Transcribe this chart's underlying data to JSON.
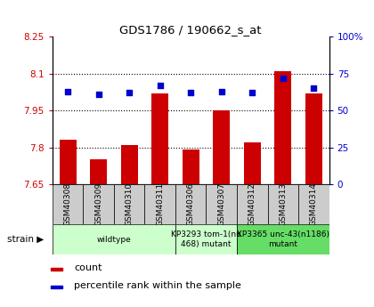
{
  "title": "GDS1786 / 190662_s_at",
  "samples": [
    "GSM40308",
    "GSM40309",
    "GSM40310",
    "GSM40311",
    "GSM40306",
    "GSM40307",
    "GSM40312",
    "GSM40313",
    "GSM40314"
  ],
  "count_values": [
    7.83,
    7.75,
    7.81,
    8.02,
    7.79,
    7.95,
    7.82,
    8.11,
    8.02
  ],
  "percentile_values": [
    63,
    61,
    62,
    67,
    62,
    63,
    62,
    72,
    65
  ],
  "ylim_left": [
    7.65,
    8.25
  ],
  "ylim_right": [
    0,
    100
  ],
  "yticks_left": [
    7.65,
    7.8,
    7.95,
    8.1,
    8.25
  ],
  "yticks_right": [
    0,
    25,
    50,
    75,
    100
  ],
  "ytick_labels_left": [
    "7.65",
    "7.8",
    "7.95",
    "8.1",
    "8.25"
  ],
  "ytick_labels_right": [
    "0",
    "25",
    "50",
    "75",
    "100%"
  ],
  "hlines": [
    7.8,
    7.95,
    8.1
  ],
  "bar_color": "#cc0000",
  "dot_color": "#0000cc",
  "bar_baseline": 7.65,
  "group_spans": [
    [
      0,
      3,
      "wildtype",
      "#ccffcc"
    ],
    [
      4,
      5,
      "KP3293 tom-1(nu\n468) mutant",
      "#ccffcc"
    ],
    [
      6,
      8,
      "KP3365 unc-43(n1186)\nmutant",
      "#66dd66"
    ]
  ],
  "legend_bar_label": "count",
  "legend_dot_label": "percentile rank within the sample",
  "sample_box_color": "#cccccc",
  "bg_color": "#ffffff"
}
